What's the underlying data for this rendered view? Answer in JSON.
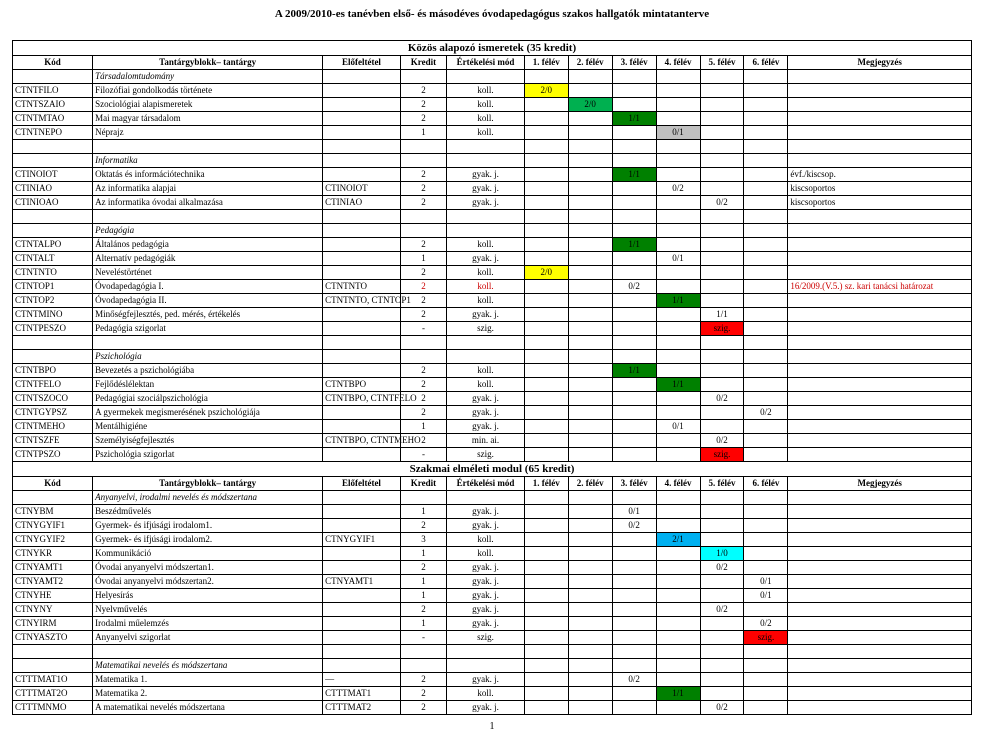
{
  "doc_title": "A 2009/2010-es tanévben első- és másodéves óvodapedagógus szakos hallgatók mintatanterve",
  "headers": {
    "kod": "Kód",
    "name": "Tantárgyblokk– tantárgy",
    "elo": "Előfeltétel",
    "kredit": "Kredit",
    "ert": "Értékelési mód",
    "sems": [
      "1. félév",
      "2. félév",
      "3. félév",
      "4. félév",
      "5. félév",
      "6. félév"
    ],
    "meg": "Megjegyzés"
  },
  "module1": {
    "title": "Közös alapozó ismeretek (35 kredit)",
    "groups": [
      {
        "label": "Társadalomtudomány",
        "rows": [
          {
            "kod": "CTNTFILO",
            "name": "Filozófiai gondolkodás története",
            "kredit": "2",
            "ert": "koll.",
            "s": [
              "2/0",
              "",
              "",
              "",
              "",
              ""
            ],
            "hi": [
              0
            ]
          },
          {
            "kod": "CTNTSZAIO",
            "name": "Szociológiai alapismeretek",
            "kredit": "2",
            "ert": "koll.",
            "s": [
              "",
              "2/0",
              "",
              "",
              "",
              ""
            ],
            "hi": [
              1
            ]
          },
          {
            "kod": "CTNTMTAO",
            "name": "Mai magyar társadalom",
            "kredit": "2",
            "ert": "koll.",
            "s": [
              "",
              "",
              "1/1",
              "",
              "",
              ""
            ],
            "hi": [
              2
            ]
          },
          {
            "kod": "CTNTNEPO",
            "name": "Néprajz",
            "kredit": "1",
            "ert": "koll.",
            "s": [
              "",
              "",
              "",
              "0/1",
              "",
              ""
            ],
            "hi_grey": [
              3
            ]
          }
        ]
      },
      {
        "label": "Informatika",
        "rows": [
          {
            "kod": "CTINOIOT",
            "name": "Oktatás és információtechnika",
            "kredit": "2",
            "ert": "gyak. j.",
            "s": [
              "",
              "",
              "1/1",
              "",
              "",
              ""
            ],
            "hi": [
              2
            ],
            "meg": "évf./kiscsop."
          },
          {
            "kod": "CTINIAO",
            "name": "Az informatika alapjai",
            "elo": "CTINOIOT",
            "kredit": "2",
            "ert": "gyak. j.",
            "s": [
              "",
              "",
              "",
              "0/2",
              "",
              ""
            ],
            "meg": "kiscsoportos"
          },
          {
            "kod": "CTINIOAO",
            "name": "Az informatika óvodai alkalmazása",
            "elo": "CTINIAO",
            "kredit": "2",
            "ert": "gyak. j.",
            "s": [
              "",
              "",
              "",
              "",
              "0/2",
              ""
            ],
            "meg": "kiscsoportos"
          }
        ]
      },
      {
        "label": "Pedagógia",
        "rows": [
          {
            "kod": "CTNTALPO",
            "name": "Általános pedagógia",
            "kredit": "2",
            "ert": "koll.",
            "s": [
              "",
              "",
              "1/1",
              "",
              "",
              ""
            ],
            "hi": [
              2
            ]
          },
          {
            "kod": "CTNTALT",
            "name": "Alternatív pedagógiák",
            "kredit": "1",
            "ert": "gyak. j.",
            "s": [
              "",
              "",
              "",
              "0/1",
              "",
              ""
            ]
          },
          {
            "kod": "CTNTNTO",
            "name": "Neveléstörténet",
            "kredit": "2",
            "ert": "koll.",
            "s": [
              "2/0",
              "",
              "",
              "",
              "",
              ""
            ],
            "hi": [
              0
            ]
          },
          {
            "kod": "CTNTOP1",
            "name": "Óvodapedagógia I.",
            "elo": "CTNTNTO",
            "kredit": "2",
            "ert": "koll.",
            "red": true,
            "s": [
              "",
              "",
              "0/2",
              "",
              "",
              ""
            ],
            "meg": "16/2009.(V.5.) sz. kari tanácsi határozat",
            "megred": true
          },
          {
            "kod": "CTNTOP2",
            "name": "Óvodapedagógia II.",
            "elo": "CTNTNTO, CTNTOP1",
            "kredit": "2",
            "ert": "koll.",
            "s": [
              "",
              "",
              "",
              "1/1",
              "",
              ""
            ],
            "hi": [
              3
            ]
          },
          {
            "kod": "CTNTMINO",
            "name": "Minőségfejlesztés, ped. mérés, értékelés",
            "kredit": "2",
            "ert": "gyak. j.",
            "s": [
              "",
              "",
              "",
              "",
              "1/1",
              ""
            ]
          },
          {
            "kod": "CTNTPESZO",
            "name": "Pedagógia szigorlat",
            "kredit": "-",
            "ert": "szig.",
            "s": [
              "",
              "",
              "",
              "",
              "szig.",
              ""
            ],
            "hi_red": [
              4
            ]
          }
        ]
      },
      {
        "label": "Pszichológia",
        "rows": [
          {
            "kod": "CTNTBPO",
            "name": "Bevezetés a pszichológiába",
            "kredit": "2",
            "ert": "koll.",
            "s": [
              "",
              "",
              "1/1",
              "",
              "",
              ""
            ],
            "hi": [
              2
            ]
          },
          {
            "kod": "CTNTFELO",
            "name": "Fejlődéslélektan",
            "elo": "CTNTBPO",
            "kredit": "2",
            "ert": "koll.",
            "s": [
              "",
              "",
              "",
              "1/1",
              "",
              ""
            ],
            "hi": [
              3
            ]
          },
          {
            "kod": "CTNTSZOCO",
            "name": "Pedagógiai szociálpszichológia",
            "elo": "CTNTBPO, CTNTFELO",
            "kredit": "2",
            "ert": "gyak. j.",
            "s": [
              "",
              "",
              "",
              "",
              "0/2",
              ""
            ]
          },
          {
            "kod": "CTNTGYPSZ",
            "name": "A gyermekek megismerésének pszichológiája",
            "kredit": "2",
            "ert": "gyak. j.",
            "s": [
              "",
              "",
              "",
              "",
              "",
              "0/2"
            ]
          },
          {
            "kod": "CTNTMEHO",
            "name": "Mentálhigiéne",
            "kredit": "1",
            "ert": "gyak. j.",
            "s": [
              "",
              "",
              "",
              "0/1",
              "",
              ""
            ]
          },
          {
            "kod": "CTNTSZFE",
            "name": "Személyiségfejlesztés",
            "elo": "CTNTBPO, CTNTMEHO",
            "kredit": "2",
            "ert": "min. ai.",
            "s": [
              "",
              "",
              "",
              "",
              "0/2",
              ""
            ]
          },
          {
            "kod": "CTNTPSZO",
            "name": "Pszichológia szigorlat",
            "kredit": "-",
            "ert": "szig.",
            "s": [
              "",
              "",
              "",
              "",
              "szig.",
              ""
            ],
            "hi_red": [
              4
            ]
          }
        ]
      }
    ]
  },
  "module2": {
    "title": "Szakmai elméleti modul (65 kredit)",
    "groups": [
      {
        "label": "Anyanyelvi, irodalmi nevelés és módszertana",
        "rows": [
          {
            "kod": "CTNYBM",
            "name": "Beszédművelés",
            "kredit": "1",
            "ert": "gyak. j.",
            "s": [
              "",
              "",
              "0/1",
              "",
              "",
              ""
            ]
          },
          {
            "kod": "CTNYGYIF1",
            "name": "Gyermek- és ifjúsági irodalom1.",
            "kredit": "2",
            "ert": "gyak. j.",
            "s": [
              "",
              "",
              "0/2",
              "",
              "",
              ""
            ]
          },
          {
            "kod": "CTNYGYIF2",
            "name": "Gyermek- és ifjúsági irodalom2.",
            "elo": "CTNYGYIF1",
            "kredit": "3",
            "ert": "koll.",
            "s": [
              "",
              "",
              "",
              "2/1",
              "",
              ""
            ],
            "hi_blue": [
              3
            ]
          },
          {
            "kod": "CTNYKR",
            "name": "Kommunikáció",
            "kredit": "1",
            "ert": "koll.",
            "s": [
              "",
              "",
              "",
              "",
              "1/0",
              ""
            ],
            "hi_cyan": [
              4
            ]
          },
          {
            "kod": "CTNYAMT1",
            "name": "Óvodai anyanyelvi módszertan1.",
            "kredit": "2",
            "ert": "gyak. j.",
            "s": [
              "",
              "",
              "",
              "",
              "0/2",
              ""
            ]
          },
          {
            "kod": "CTNYAMT2",
            "name": "Óvodai anyanyelvi módszertan2.",
            "elo": "CTNYAMT1",
            "kredit": "1",
            "ert": "gyak. j.",
            "s": [
              "",
              "",
              "",
              "",
              "",
              "0/1"
            ]
          },
          {
            "kod": "CTNYHE",
            "name": "Helyesírás",
            "kredit": "1",
            "ert": "gyak. j.",
            "s": [
              "",
              "",
              "",
              "",
              "",
              "0/1"
            ]
          },
          {
            "kod": "CTNYNY",
            "name": "Nyelvművelés",
            "kredit": "2",
            "ert": "gyak. j.",
            "s": [
              "",
              "",
              "",
              "",
              "0/2",
              ""
            ]
          },
          {
            "kod": "CTNYIRM",
            "name": "Irodalmi műelemzés",
            "kredit": "1",
            "ert": "gyak. j.",
            "s": [
              "",
              "",
              "",
              "",
              "",
              "0/2"
            ]
          },
          {
            "kod": "CTNYASZTO",
            "name": "Anyanyelvi szigorlat",
            "kredit": "-",
            "ert": "szig.",
            "s": [
              "",
              "",
              "",
              "",
              "",
              "szig."
            ],
            "hi_red": [
              5
            ]
          }
        ]
      },
      {
        "label": "Matematikai nevelés és módszertana",
        "rows": [
          {
            "kod": "CTTTMAT1O",
            "name": "Matematika 1.",
            "elo": "—",
            "kredit": "2",
            "ert": "gyak. j.",
            "s": [
              "",
              "",
              "0/2",
              "",
              "",
              ""
            ]
          },
          {
            "kod": "CTTTMAT2O",
            "name": "Matematika 2.",
            "elo": "CTTTMAT1",
            "kredit": "2",
            "ert": "koll.",
            "s": [
              "",
              "",
              "",
              "1/1",
              "",
              ""
            ],
            "hi_green2": [
              3
            ]
          },
          {
            "kod": "CTTTMNMO",
            "name": "A matematikai nevelés módszertana",
            "elo": "CTTTMAT2",
            "kredit": "2",
            "ert": "gyak. j.",
            "s": [
              "",
              "",
              "",
              "",
              "0/2",
              ""
            ]
          }
        ]
      }
    ]
  },
  "page_num": "1"
}
